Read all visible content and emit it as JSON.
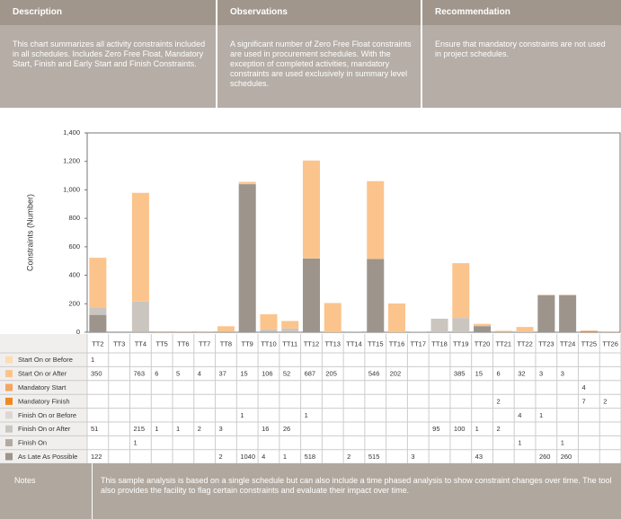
{
  "header": {
    "columns": [
      {
        "title": "Description",
        "text": "This chart summarizes all activity constraints included in all schedules. Includes Zero Free Float, Mandatory Start, Finish and Early Start and Finish Constraints."
      },
      {
        "title": "Observations",
        "text": "A significant number of Zero Free Float constraints are used in procurement schedules. With the exception of completed activities, mandatory constraints are used exclusively in summary level schedules."
      },
      {
        "title": "Recommendation",
        "text": "Ensure that mandatory constraints are not used in project schedules."
      }
    ]
  },
  "chart_data": {
    "type": "stacked_bar",
    "ylabel": "Constraints (Number)",
    "categories": [
      "TT2",
      "TT3",
      "TT4",
      "TT5",
      "TT6",
      "TT7",
      "TT8",
      "TT9",
      "TT10",
      "TT11",
      "TT12",
      "TT13",
      "TT14",
      "TT15",
      "TT16",
      "TT17",
      "TT18",
      "TT19",
      "TT20",
      "TT21",
      "TT22",
      "TT23",
      "TT24",
      "TT25",
      "TT26"
    ],
    "ylim": [
      0,
      1400
    ],
    "yticks": [
      0,
      200,
      400,
      600,
      800,
      {
        "value": 1000,
        "label": "1,000"
      },
      {
        "value": 1200,
        "label": "1,200"
      },
      {
        "value": 1400,
        "label": "1,400"
      }
    ],
    "grid": false,
    "series": [
      {
        "name": "Start On or Before",
        "color": "#fcdcb4",
        "values": [
          1,
          null,
          null,
          null,
          null,
          null,
          null,
          null,
          null,
          null,
          null,
          null,
          null,
          null,
          null,
          null,
          null,
          null,
          null,
          null,
          null,
          null,
          null,
          null,
          null
        ]
      },
      {
        "name": "Start On or After",
        "color": "#fbc48c",
        "values": [
          350,
          null,
          763,
          6,
          5,
          4,
          37,
          15,
          106,
          52,
          687,
          205,
          null,
          546,
          202,
          null,
          null,
          385,
          15,
          6,
          32,
          3,
          3,
          null,
          null
        ]
      },
      {
        "name": "Mandatory Start",
        "color": "#f5a462",
        "values": [
          null,
          null,
          null,
          null,
          null,
          null,
          null,
          null,
          null,
          null,
          null,
          null,
          null,
          null,
          null,
          null,
          null,
          null,
          null,
          null,
          null,
          null,
          null,
          4,
          null
        ]
      },
      {
        "name": "Mandatory Finish",
        "color": "#ee8a22",
        "values": [
          null,
          null,
          null,
          null,
          null,
          null,
          null,
          null,
          null,
          null,
          null,
          null,
          null,
          null,
          null,
          null,
          null,
          null,
          null,
          2,
          null,
          null,
          null,
          7,
          2
        ]
      },
      {
        "name": "Finish On or Before",
        "color": "#dcd7d2",
        "values": [
          null,
          null,
          null,
          null,
          null,
          null,
          null,
          1,
          null,
          null,
          1,
          null,
          null,
          null,
          null,
          null,
          null,
          null,
          null,
          null,
          4,
          1,
          null,
          null,
          null
        ]
      },
      {
        "name": "Finish On or After",
        "color": "#cbc5bf",
        "values": [
          51,
          null,
          215,
          1,
          1,
          2,
          3,
          null,
          16,
          26,
          null,
          null,
          null,
          null,
          null,
          null,
          95,
          100,
          1,
          2,
          null,
          null,
          null,
          null,
          null
        ]
      },
      {
        "name": "Finish On",
        "color": "#b2aaa2",
        "values": [
          null,
          null,
          1,
          null,
          null,
          null,
          null,
          null,
          null,
          null,
          null,
          null,
          null,
          null,
          null,
          null,
          null,
          null,
          null,
          null,
          1,
          null,
          1,
          null,
          null
        ]
      },
      {
        "name": "As Late As Possible",
        "color": "#9d948b",
        "values": [
          122,
          null,
          null,
          null,
          null,
          null,
          2,
          1040,
          4,
          1,
          518,
          null,
          2,
          515,
          null,
          3,
          null,
          null,
          43,
          null,
          null,
          260,
          260,
          null,
          null
        ]
      }
    ]
  },
  "notes": {
    "title": "Notes",
    "text": "This sample analysis is based on a single schedule but can also include a time phased analysis to show constraint changes over time. The tool also provides the facility to flag certain constraints and evaluate their impact over time."
  }
}
